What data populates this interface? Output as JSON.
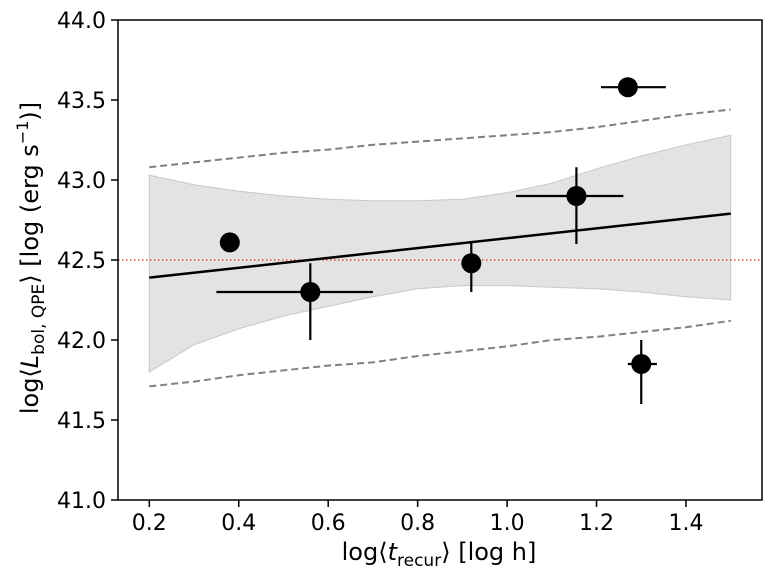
{
  "chart_data": {
    "type": "scatter",
    "title": "",
    "xlabel": {
      "prefix": "log",
      "symbol": "t",
      "subscript": "recur",
      "units": "[log  h]"
    },
    "ylabel": {
      "prefix": "log",
      "symbol": "L",
      "subscript": "bol, QPE",
      "units_prefix": "[log  (erg s",
      "units_exp": "−1",
      "units_suffix": ")]"
    },
    "xlim": [
      0.13,
      1.57
    ],
    "ylim": [
      41.0,
      44.0
    ],
    "xticks": [
      0.2,
      0.4,
      0.6,
      0.8,
      1.0,
      1.2,
      1.4
    ],
    "xtick_labels": [
      "0.2",
      "0.4",
      "0.6",
      "0.8",
      "1.0",
      "1.2",
      "1.4"
    ],
    "yticks": [
      41.0,
      41.5,
      42.0,
      42.5,
      43.0,
      43.5,
      44.0
    ],
    "ytick_labels": [
      "41.0",
      "41.5",
      "42.0",
      "42.5",
      "43.0",
      "43.5",
      "44.0"
    ],
    "reference_line": {
      "y": 42.5,
      "color": "#e03030",
      "style": "dotted"
    },
    "fit_line": {
      "x": [
        0.2,
        1.5
      ],
      "y": [
        42.39,
        42.79
      ],
      "color": "#000000"
    },
    "confidence_band": {
      "x": [
        0.2,
        0.3,
        0.4,
        0.5,
        0.6,
        0.7,
        0.8,
        0.9,
        1.0,
        1.1,
        1.2,
        1.3,
        1.4,
        1.5
      ],
      "lower": [
        41.8,
        41.97,
        42.07,
        42.15,
        42.21,
        42.27,
        42.32,
        42.34,
        42.34,
        42.33,
        42.32,
        42.3,
        42.27,
        42.25
      ],
      "upper": [
        43.03,
        42.97,
        42.93,
        42.9,
        42.88,
        42.87,
        42.87,
        42.88,
        42.92,
        42.98,
        43.07,
        43.15,
        43.22,
        43.28
      ],
      "color": "#e3e3e3"
    },
    "prediction_band": {
      "x": [
        0.2,
        0.3,
        0.4,
        0.5,
        0.6,
        0.7,
        0.8,
        0.9,
        1.0,
        1.1,
        1.2,
        1.3,
        1.4,
        1.5
      ],
      "lower": [
        41.71,
        41.74,
        41.78,
        41.81,
        41.84,
        41.86,
        41.9,
        41.93,
        41.96,
        42.0,
        42.02,
        42.05,
        42.08,
        42.12
      ],
      "upper": [
        43.08,
        43.11,
        43.14,
        43.17,
        43.19,
        43.22,
        43.24,
        43.26,
        43.28,
        43.3,
        43.33,
        43.37,
        43.41,
        43.44
      ],
      "color": "#808080",
      "style": "dashed"
    },
    "points": [
      {
        "x": 0.38,
        "y": 42.61
      },
      {
        "x": 0.56,
        "y": 42.3,
        "xerr": [
          0.21,
          0.14
        ],
        "yerr": [
          0.3,
          0.18
        ]
      },
      {
        "x": 0.92,
        "y": 42.48,
        "yerr": [
          0.18,
          0.13
        ]
      },
      {
        "x": 1.155,
        "y": 42.9,
        "xerr": [
          0.135,
          0.105
        ],
        "yerr": [
          0.3,
          0.18
        ]
      },
      {
        "x": 1.27,
        "y": 43.58,
        "xerr": [
          0.06,
          0.085
        ]
      },
      {
        "x": 1.3,
        "y": 41.85,
        "xerr": [
          0.03,
          0.035
        ],
        "yerr": [
          0.25,
          0.15
        ]
      }
    ],
    "marker_color": "#000000",
    "grid": false,
    "legend": null
  }
}
